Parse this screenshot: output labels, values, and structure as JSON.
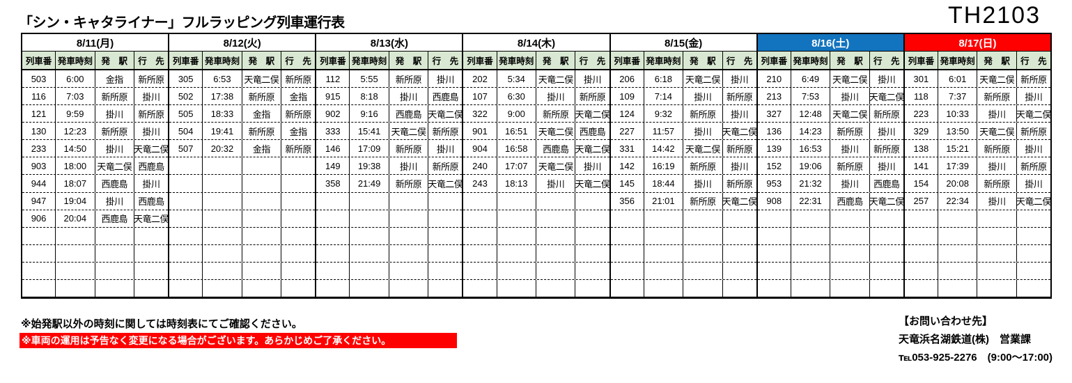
{
  "page": {
    "title": "「シン・キャタライナー」フルラッピング列車運行表",
    "code": "TH2103"
  },
  "colors": {
    "column_header_green": "#d9e8d2",
    "saturday_blue": "#1273be",
    "sunday_red": "#ff0000",
    "notice_red": "#ff0000"
  },
  "table": {
    "column_headers": [
      "列車番",
      "発車時刻",
      "発　駅",
      "行　先"
    ],
    "body_row_count": 13,
    "days": [
      {
        "label": "8/11(月)",
        "header_bg": "#ffffff",
        "header_fg": "#000000",
        "trains": [
          {
            "no": "503",
            "time": "6:00",
            "from": "金指",
            "to": "新所原"
          },
          {
            "no": "116",
            "time": "7:03",
            "from": "新所原",
            "to": "掛川"
          },
          {
            "no": "121",
            "time": "9:59",
            "from": "掛川",
            "to": "新所原"
          },
          {
            "no": "130",
            "time": "12:23",
            "from": "新所原",
            "to": "掛川"
          },
          {
            "no": "233",
            "time": "14:50",
            "from": "掛川",
            "to": "天竜二俣"
          },
          {
            "no": "903",
            "time": "18:00",
            "from": "天竜二俣",
            "to": "西鹿島"
          },
          {
            "no": "944",
            "time": "18:07",
            "from": "西鹿島",
            "to": "掛川"
          },
          {
            "no": "947",
            "time": "19:04",
            "from": "掛川",
            "to": "西鹿島"
          },
          {
            "no": "906",
            "time": "20:04",
            "from": "西鹿島",
            "to": "天竜二俣"
          }
        ]
      },
      {
        "label": "8/12(火)",
        "header_bg": "#ffffff",
        "header_fg": "#000000",
        "trains": [
          {
            "no": "305",
            "time": "6:53",
            "from": "天竜二俣",
            "to": "新所原"
          },
          {
            "no": "502",
            "time": "17:38",
            "from": "新所原",
            "to": "金指"
          },
          {
            "no": "505",
            "time": "18:33",
            "from": "金指",
            "to": "新所原"
          },
          {
            "no": "504",
            "time": "19:41",
            "from": "新所原",
            "to": "金指"
          },
          {
            "no": "507",
            "time": "20:32",
            "from": "金指",
            "to": "新所原"
          }
        ]
      },
      {
        "label": "8/13(水)",
        "header_bg": "#ffffff",
        "header_fg": "#000000",
        "trains": [
          {
            "no": "112",
            "time": "5:55",
            "from": "新所原",
            "to": "掛川"
          },
          {
            "no": "915",
            "time": "8:18",
            "from": "掛川",
            "to": "西鹿島"
          },
          {
            "no": "902",
            "time": "9:16",
            "from": "西鹿島",
            "to": "天竜二俣"
          },
          {
            "no": "333",
            "time": "15:41",
            "from": "天竜二俣",
            "to": "新所原"
          },
          {
            "no": "146",
            "time": "17:09",
            "from": "新所原",
            "to": "掛川"
          },
          {
            "no": "149",
            "time": "19:38",
            "from": "掛川",
            "to": "新所原"
          },
          {
            "no": "358",
            "time": "21:49",
            "from": "新所原",
            "to": "天竜二俣"
          }
        ]
      },
      {
        "label": "8/14(木)",
        "header_bg": "#ffffff",
        "header_fg": "#000000",
        "trains": [
          {
            "no": "202",
            "time": "5:34",
            "from": "天竜二俣",
            "to": "掛川"
          },
          {
            "no": "107",
            "time": "6:30",
            "from": "掛川",
            "to": "新所原"
          },
          {
            "no": "322",
            "time": "9:00",
            "from": "新所原",
            "to": "天竜二俣"
          },
          {
            "no": "901",
            "time": "16:51",
            "from": "天竜二俣",
            "to": "西鹿島"
          },
          {
            "no": "904",
            "time": "16:58",
            "from": "西鹿島",
            "to": "天竜二俣"
          },
          {
            "no": "240",
            "time": "17:07",
            "from": "天竜二俣",
            "to": "掛川"
          },
          {
            "no": "243",
            "time": "18:13",
            "from": "掛川",
            "to": "天竜二俣"
          }
        ]
      },
      {
        "label": "8/15(金)",
        "header_bg": "#ffffff",
        "header_fg": "#000000",
        "trains": [
          {
            "no": "206",
            "time": "6:18",
            "from": "天竜二俣",
            "to": "掛川"
          },
          {
            "no": "109",
            "time": "7:14",
            "from": "掛川",
            "to": "新所原"
          },
          {
            "no": "124",
            "time": "9:32",
            "from": "新所原",
            "to": "掛川"
          },
          {
            "no": "227",
            "time": "11:57",
            "from": "掛川",
            "to": "天竜二俣"
          },
          {
            "no": "331",
            "time": "14:42",
            "from": "天竜二俣",
            "to": "新所原"
          },
          {
            "no": "142",
            "time": "16:19",
            "from": "新所原",
            "to": "掛川"
          },
          {
            "no": "145",
            "time": "18:44",
            "from": "掛川",
            "to": "新所原"
          },
          {
            "no": "356",
            "time": "21:01",
            "from": "新所原",
            "to": "天竜二俣"
          }
        ]
      },
      {
        "label": "8/16(土)",
        "header_bg": "#1273be",
        "header_fg": "#ffffff",
        "trains": [
          {
            "no": "210",
            "time": "6:49",
            "from": "天竜二俣",
            "to": "掛川"
          },
          {
            "no": "213",
            "time": "7:53",
            "from": "掛川",
            "to": "天竜二俣"
          },
          {
            "no": "327",
            "time": "12:48",
            "from": "天竜二俣",
            "to": "新所原"
          },
          {
            "no": "136",
            "time": "14:23",
            "from": "新所原",
            "to": "掛川"
          },
          {
            "no": "139",
            "time": "16:53",
            "from": "掛川",
            "to": "新所原"
          },
          {
            "no": "152",
            "time": "19:06",
            "from": "新所原",
            "to": "掛川"
          },
          {
            "no": "953",
            "time": "21:32",
            "from": "掛川",
            "to": "西鹿島"
          },
          {
            "no": "908",
            "time": "22:31",
            "from": "西鹿島",
            "to": "天竜二俣"
          }
        ]
      },
      {
        "label": "8/17(日)",
        "header_bg": "#ff0000",
        "header_fg": "#ffffff",
        "trains": [
          {
            "no": "301",
            "time": "6:01",
            "from": "天竜二俣",
            "to": "新所原"
          },
          {
            "no": "118",
            "time": "7:37",
            "from": "新所原",
            "to": "掛川"
          },
          {
            "no": "223",
            "time": "10:33",
            "from": "掛川",
            "to": "天竜二俣"
          },
          {
            "no": "329",
            "time": "13:50",
            "from": "天竜二俣",
            "to": "新所原"
          },
          {
            "no": "138",
            "time": "15:21",
            "from": "新所原",
            "to": "掛川"
          },
          {
            "no": "141",
            "time": "17:39",
            "from": "掛川",
            "to": "新所原"
          },
          {
            "no": "154",
            "time": "20:08",
            "from": "新所原",
            "to": "掛川"
          },
          {
            "no": "257",
            "time": "22:34",
            "from": "掛川",
            "to": "天竜二俣"
          }
        ]
      }
    ]
  },
  "notes": {
    "note1": "※始発駅以外の時刻に関しては時刻表にてご確認ください。",
    "note2": "※車両の運用は予告なく変更になる場合がございます。あらかじめご了承ください。"
  },
  "contact": {
    "heading": "【お問い合わせ先】",
    "company": "天竜浜名湖鉄道(株)　営業課",
    "tel": "℡053-925-2276　(9:00～17:00)"
  }
}
